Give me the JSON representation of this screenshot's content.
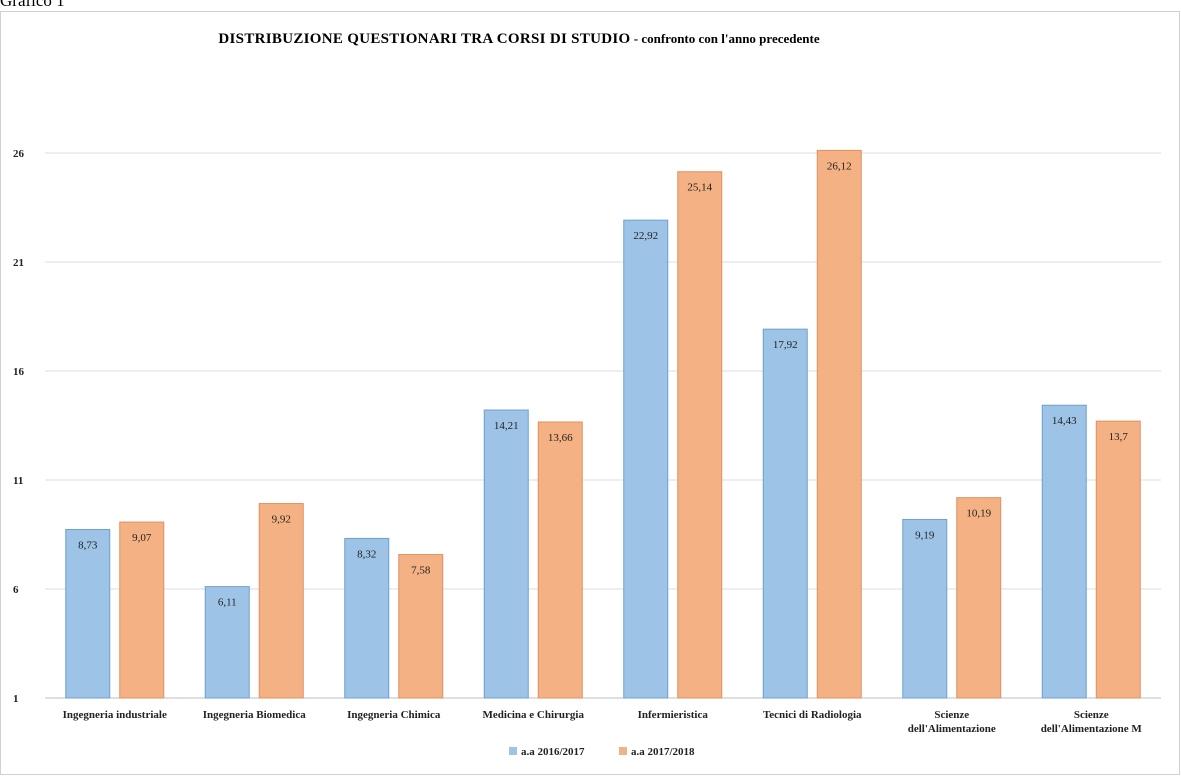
{
  "caption": "Grafico 1",
  "chart_data": {
    "type": "bar",
    "title": "DISTRIBUZIONE QUESTIONARI TRA CORSI DI STUDIO",
    "subtitle": " - confronto con l'anno precedente",
    "xlabel": "",
    "ylabel": "",
    "ylim": [
      1,
      31
    ],
    "yticks": [
      "1",
      "6",
      "11",
      "16",
      "21",
      "26"
    ],
    "grid": true,
    "legend_position": "bottom",
    "categories": [
      [
        "Ingegneria industriale"
      ],
      [
        "Ingegneria Biomedica"
      ],
      [
        "Ingegneria Chimica"
      ],
      [
        "Medicina e Chirurgia"
      ],
      [
        "Infermieristica"
      ],
      [
        "Tecnici di Radiologia"
      ],
      [
        "Scienze",
        "dell'Alimentazione"
      ],
      [
        "Scienze",
        "dell'Alimentazione M"
      ]
    ],
    "series": [
      {
        "name": "a.a 2016/2017",
        "color": "#9dc3e6",
        "stroke": "#6fa0d0",
        "values": [
          8.73,
          6.11,
          8.32,
          14.21,
          22.92,
          17.92,
          9.19,
          14.43
        ],
        "labels": [
          "8,73",
          "6,11",
          "8,32",
          "14,21",
          "22,92",
          "17,92",
          "9,19",
          "14,43"
        ]
      },
      {
        "name": "a.a 2017/2018",
        "color": "#f4b183",
        "stroke": "#e09060",
        "values": [
          9.07,
          9.92,
          7.58,
          13.66,
          25.14,
          26.12,
          10.19,
          13.7
        ],
        "labels": [
          "9,07",
          "9,92",
          "7,58",
          "13,66",
          "25,14",
          "26,12",
          "10,19",
          "13,7"
        ]
      }
    ]
  }
}
